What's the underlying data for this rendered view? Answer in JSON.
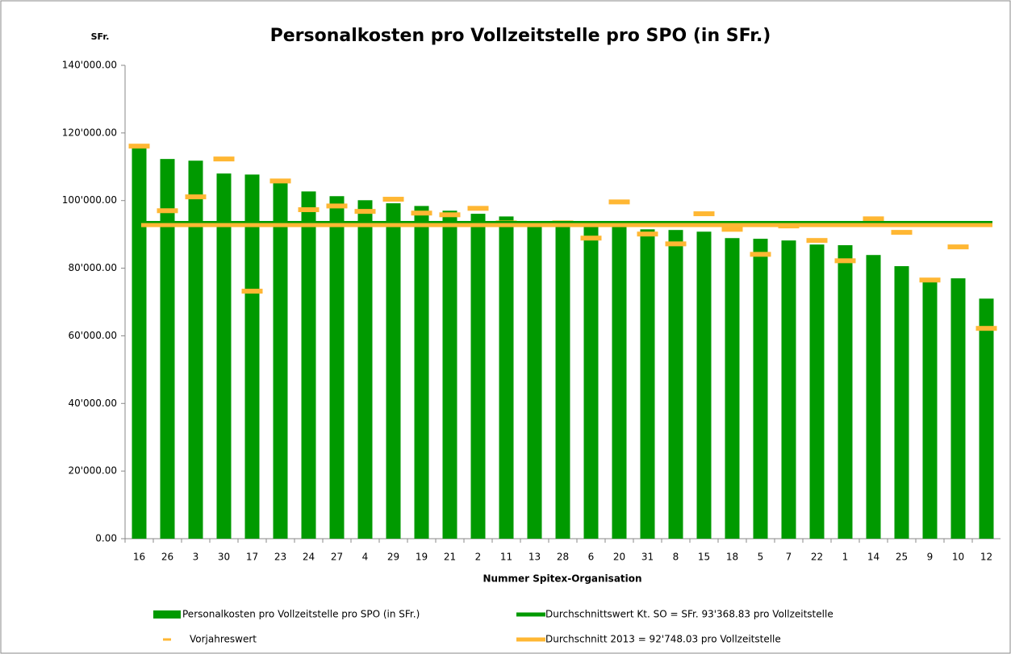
{
  "chart_data": {
    "type": "bar",
    "title": "Personalkosten pro Vollzeitstelle pro SPO (in SFr.)",
    "y_label": "SFr.",
    "x_label": "Nummer Spitex-Organisation",
    "categories": [
      "16",
      "26",
      "3",
      "30",
      "17",
      "23",
      "24",
      "27",
      "4",
      "29",
      "19",
      "21",
      "2",
      "11",
      "13",
      "28",
      "6",
      "20",
      "31",
      "8",
      "15",
      "18",
      "5",
      "7",
      "22",
      "1",
      "14",
      "25",
      "9",
      "10",
      "12"
    ],
    "series": [
      {
        "name": "Personalkosten pro Vollzeitstelle pro SPO (in SFr.)",
        "color": "#009a00",
        "marker": "bar",
        "values": [
          115900,
          112300,
          111800,
          108000,
          107700,
          105600,
          102700,
          101300,
          100100,
          99200,
          98400,
          97000,
          96100,
          95300,
          93400,
          93400,
          92300,
          92200,
          91500,
          91300,
          90800,
          88900,
          88700,
          88200,
          87000,
          86800,
          83900,
          80600,
          76800,
          77000,
          71000
        ]
      },
      {
        "name": "Vorjahreswert",
        "color": "#ffb733",
        "marker": "dash",
        "values": [
          116100,
          97000,
          101100,
          112300,
          73200,
          105800,
          97300,
          98400,
          96800,
          100400,
          96300,
          95800,
          97700,
          93400,
          93200,
          93400,
          88900,
          99600,
          90100,
          87200,
          96100,
          91500,
          84100,
          92500,
          88200,
          82200,
          94600,
          90600,
          76500,
          86300,
          62200
        ]
      }
    ],
    "reference_lines": [
      {
        "name": "Durchschnittswert Kt. SO = SFr. 93'368.83 pro Vollzeitstelle",
        "value": 93368.83,
        "color": "#009a00"
      },
      {
        "name": "Durchschnitt 2013 = 92'748.03 pro Vollzeitstelle",
        "value": 92748.03,
        "color": "#ffb733"
      }
    ],
    "ylim": [
      0,
      140000
    ],
    "yticks": [
      {
        "value": 0,
        "label": "0.00"
      },
      {
        "value": 20000,
        "label": "20'000.00"
      },
      {
        "value": 40000,
        "label": "40'000.00"
      },
      {
        "value": 60000,
        "label": "60'000.00"
      },
      {
        "value": 80000,
        "label": "80'000.00"
      },
      {
        "value": 100000,
        "label": "100'000.00"
      },
      {
        "value": 120000,
        "label": "120'000.00"
      },
      {
        "value": 140000,
        "label": "140'000.00"
      }
    ],
    "grid": false
  }
}
